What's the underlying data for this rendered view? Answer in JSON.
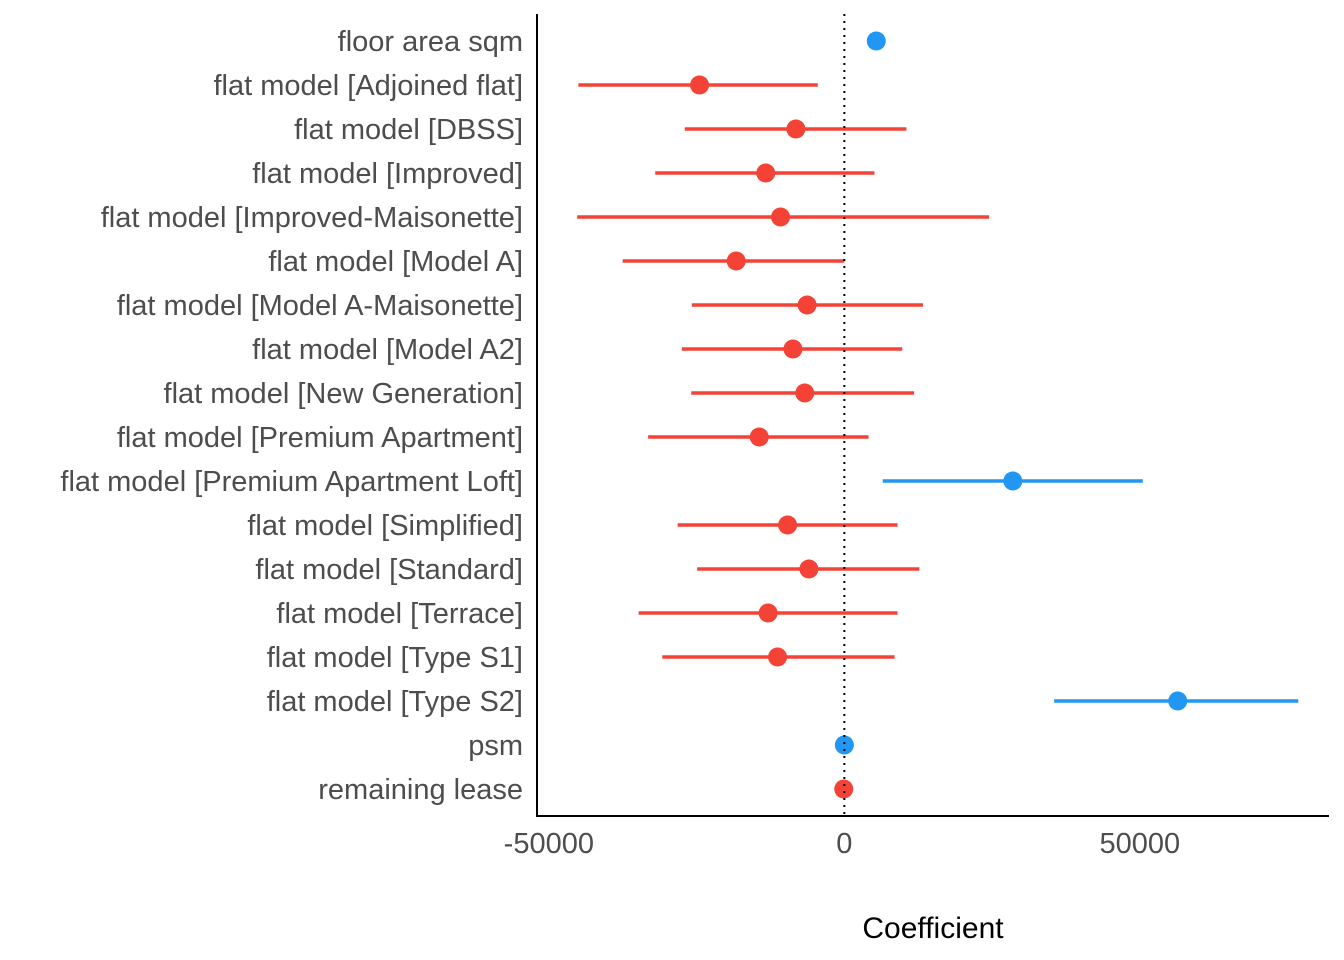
{
  "chart_data": {
    "type": "forest",
    "xlabel": "Coefficient",
    "xlim": [
      -52000,
      82000
    ],
    "xticks": [
      -50000,
      0,
      50000
    ],
    "xtick_labels": [
      "-50000",
      "0",
      "50000"
    ],
    "reference_line": 0,
    "grid": false,
    "colors": {
      "positive": "#2196f3",
      "negative": "#f44336"
    },
    "terms": [
      {
        "label": "floor area sqm",
        "estimate": 5400,
        "low": 5000,
        "high": 5800,
        "sign": "positive"
      },
      {
        "label": "flat model [Adjoined flat]",
        "estimate": -24500,
        "low": -45000,
        "high": -4500,
        "sign": "negative"
      },
      {
        "label": "flat model [DBSS]",
        "estimate": -8200,
        "low": -27000,
        "high": 10500,
        "sign": "negative"
      },
      {
        "label": "flat model [Improved]",
        "estimate": -13300,
        "low": -32000,
        "high": 5100,
        "sign": "negative"
      },
      {
        "label": "flat model [Improved-Maisonette]",
        "estimate": -10800,
        "low": -45200,
        "high": 24500,
        "sign": "negative"
      },
      {
        "label": "flat model [Model A]",
        "estimate": -18300,
        "low": -37500,
        "high": 0,
        "sign": "negative"
      },
      {
        "label": "flat model [Model A-Maisonette]",
        "estimate": -6300,
        "low": -25800,
        "high": 13300,
        "sign": "negative"
      },
      {
        "label": "flat model [Model A2]",
        "estimate": -8700,
        "low": -27500,
        "high": 9800,
        "sign": "negative"
      },
      {
        "label": "flat model [New Generation]",
        "estimate": -6700,
        "low": -25900,
        "high": 11800,
        "sign": "negative"
      },
      {
        "label": "flat model [Premium Apartment]",
        "estimate": -14400,
        "low": -33200,
        "high": 4100,
        "sign": "negative"
      },
      {
        "label": "flat model [Premium Apartment Loft]",
        "estimate": 28500,
        "low": 6500,
        "high": 50500,
        "sign": "positive"
      },
      {
        "label": "flat model [Simplified]",
        "estimate": -9600,
        "low": -28200,
        "high": 9000,
        "sign": "negative"
      },
      {
        "label": "flat model [Standard]",
        "estimate": -6000,
        "low": -24900,
        "high": 12700,
        "sign": "negative"
      },
      {
        "label": "flat model [Terrace]",
        "estimate": -12900,
        "low": -34800,
        "high": 9000,
        "sign": "negative"
      },
      {
        "label": "flat model [Type S1]",
        "estimate": -11300,
        "low": -30800,
        "high": 8500,
        "sign": "negative"
      },
      {
        "label": "flat model [Type S2]",
        "estimate": 56400,
        "low": 35500,
        "high": 76800,
        "sign": "positive"
      },
      {
        "label": "psm",
        "estimate": 0,
        "low": -100,
        "high": 100,
        "sign": "positive"
      },
      {
        "label": "remaining lease",
        "estimate": -100,
        "low": -200,
        "high": 0,
        "sign": "negative"
      }
    ]
  }
}
